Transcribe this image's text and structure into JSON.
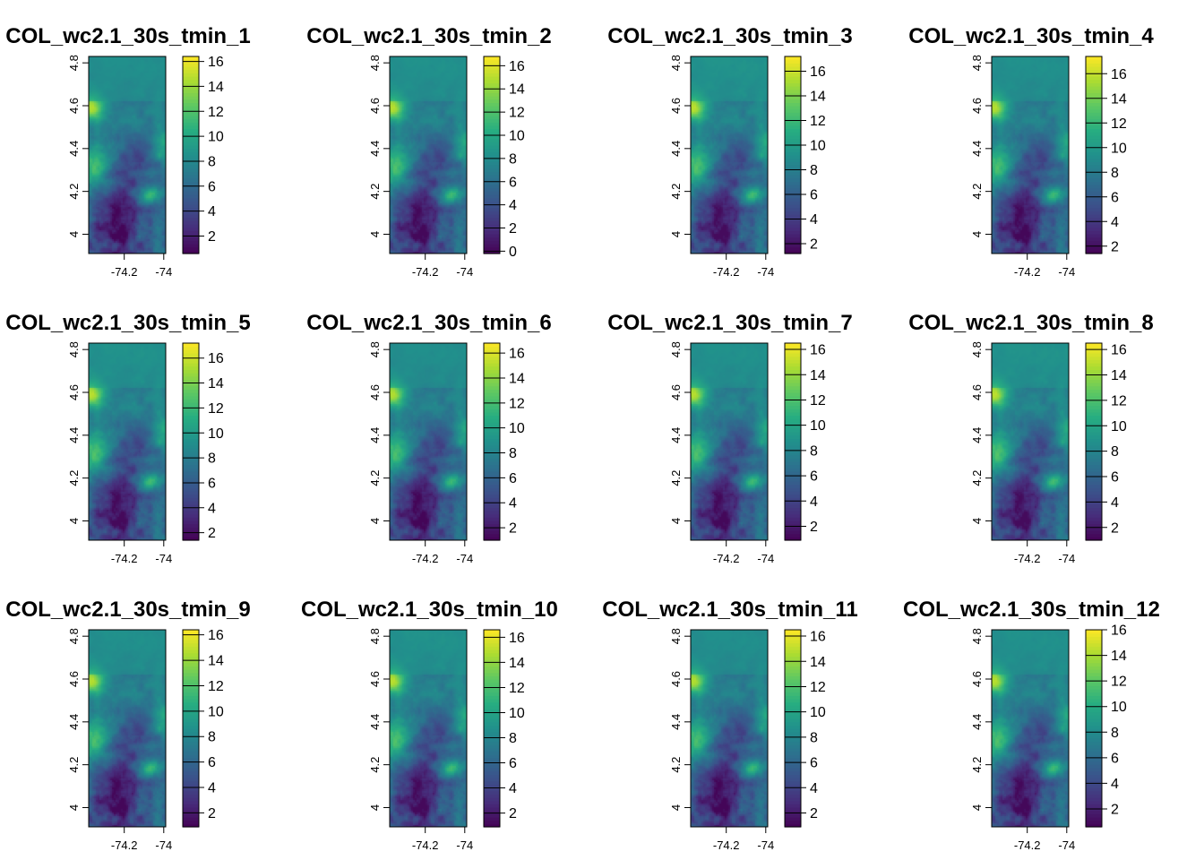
{
  "figure": {
    "x_ticks": [
      "-74.2",
      "-74"
    ],
    "y_ticks": [
      "4",
      "4.2",
      "4.4",
      "4.6",
      "4.8"
    ],
    "x_range": [
      -74.38,
      -73.99
    ],
    "y_range": [
      3.91,
      4.83
    ],
    "palette": [
      "#440154",
      "#472d7b",
      "#3b528b",
      "#2c728e",
      "#21908c",
      "#27ad81",
      "#5dc863",
      "#aadc32",
      "#fde725"
    ],
    "panels": [
      {
        "title": "COL_wc2.1_30s_tmin_1",
        "legend_min": 0.6,
        "legend_max": 16.4,
        "legend_ticks": [
          2,
          4,
          6,
          8,
          10,
          12,
          14,
          16
        ]
      },
      {
        "title": "COL_wc2.1_30s_tmin_2",
        "legend_min": -0.2,
        "legend_max": 16.8,
        "legend_ticks": [
          0,
          2,
          4,
          6,
          8,
          10,
          12,
          14,
          16
        ]
      },
      {
        "title": "COL_wc2.1_30s_tmin_3",
        "legend_min": 1.2,
        "legend_max": 17.2,
        "legend_ticks": [
          2,
          4,
          6,
          8,
          10,
          12,
          14,
          16
        ]
      },
      {
        "title": "COL_wc2.1_30s_tmin_4",
        "legend_min": 1.4,
        "legend_max": 17.4,
        "legend_ticks": [
          2,
          4,
          6,
          8,
          10,
          12,
          14,
          16
        ]
      },
      {
        "title": "COL_wc2.1_30s_tmin_5",
        "legend_min": 1.4,
        "legend_max": 17.2,
        "legend_ticks": [
          2,
          4,
          6,
          8,
          10,
          12,
          14,
          16
        ]
      },
      {
        "title": "COL_wc2.1_30s_tmin_6",
        "legend_min": 1.0,
        "legend_max": 16.8,
        "legend_ticks": [
          2,
          4,
          6,
          8,
          10,
          12,
          14,
          16
        ]
      },
      {
        "title": "COL_wc2.1_30s_tmin_7",
        "legend_min": 0.9,
        "legend_max": 16.5,
        "legend_ticks": [
          2,
          4,
          6,
          8,
          10,
          12,
          14,
          16
        ]
      },
      {
        "title": "COL_wc2.1_30s_tmin_8",
        "legend_min": 1.0,
        "legend_max": 16.5,
        "legend_ticks": [
          2,
          4,
          6,
          8,
          10,
          12,
          14,
          16
        ]
      },
      {
        "title": "COL_wc2.1_30s_tmin_9",
        "legend_min": 0.9,
        "legend_max": 16.4,
        "legend_ticks": [
          2,
          4,
          6,
          8,
          10,
          12,
          14,
          16
        ]
      },
      {
        "title": "COL_wc2.1_30s_tmin_10",
        "legend_min": 0.9,
        "legend_max": 16.6,
        "legend_ticks": [
          2,
          4,
          6,
          8,
          10,
          12,
          14,
          16
        ]
      },
      {
        "title": "COL_wc2.1_30s_tmin_11",
        "legend_min": 0.9,
        "legend_max": 16.5,
        "legend_ticks": [
          2,
          4,
          6,
          8,
          10,
          12,
          14,
          16
        ]
      },
      {
        "title": "COL_wc2.1_30s_tmin_12",
        "legend_min": 0.6,
        "legend_max": 16.0,
        "legend_ticks": [
          2,
          4,
          6,
          8,
          10,
          12,
          14,
          16
        ]
      }
    ]
  }
}
